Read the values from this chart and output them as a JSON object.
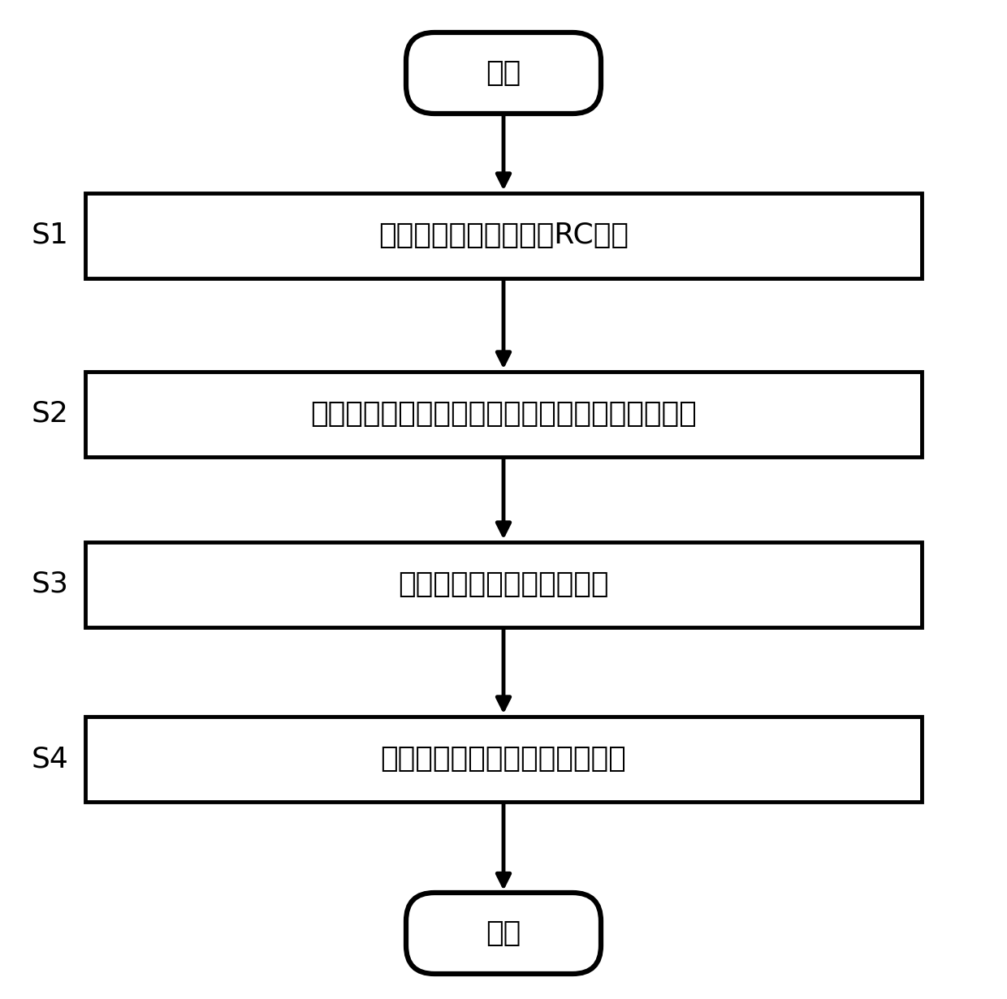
{
  "background_color": "#ffffff",
  "start_end_text": [
    "开始",
    "结束"
  ],
  "steps": [
    {
      "label": "S1",
      "text": "建立锂电池分数阶二阶RC模型"
    },
    {
      "label": "S2",
      "text": "设计基于分数阶模型的自适应扩展卡尔曼滤波算法"
    },
    {
      "label": "S3",
      "text": "辨识模型参数及非线性函数"
    },
    {
      "label": "S4",
      "text": "采集电流电压数据估计剩余电量"
    }
  ],
  "font_size_box": 26,
  "font_size_label": 26,
  "font_size_oval": 26,
  "box_color": "#ffffff",
  "box_edge_color": "#000000",
  "text_color": "#000000",
  "arrow_color": "#000000",
  "line_width": 3.5,
  "oval_lw": 4.5
}
